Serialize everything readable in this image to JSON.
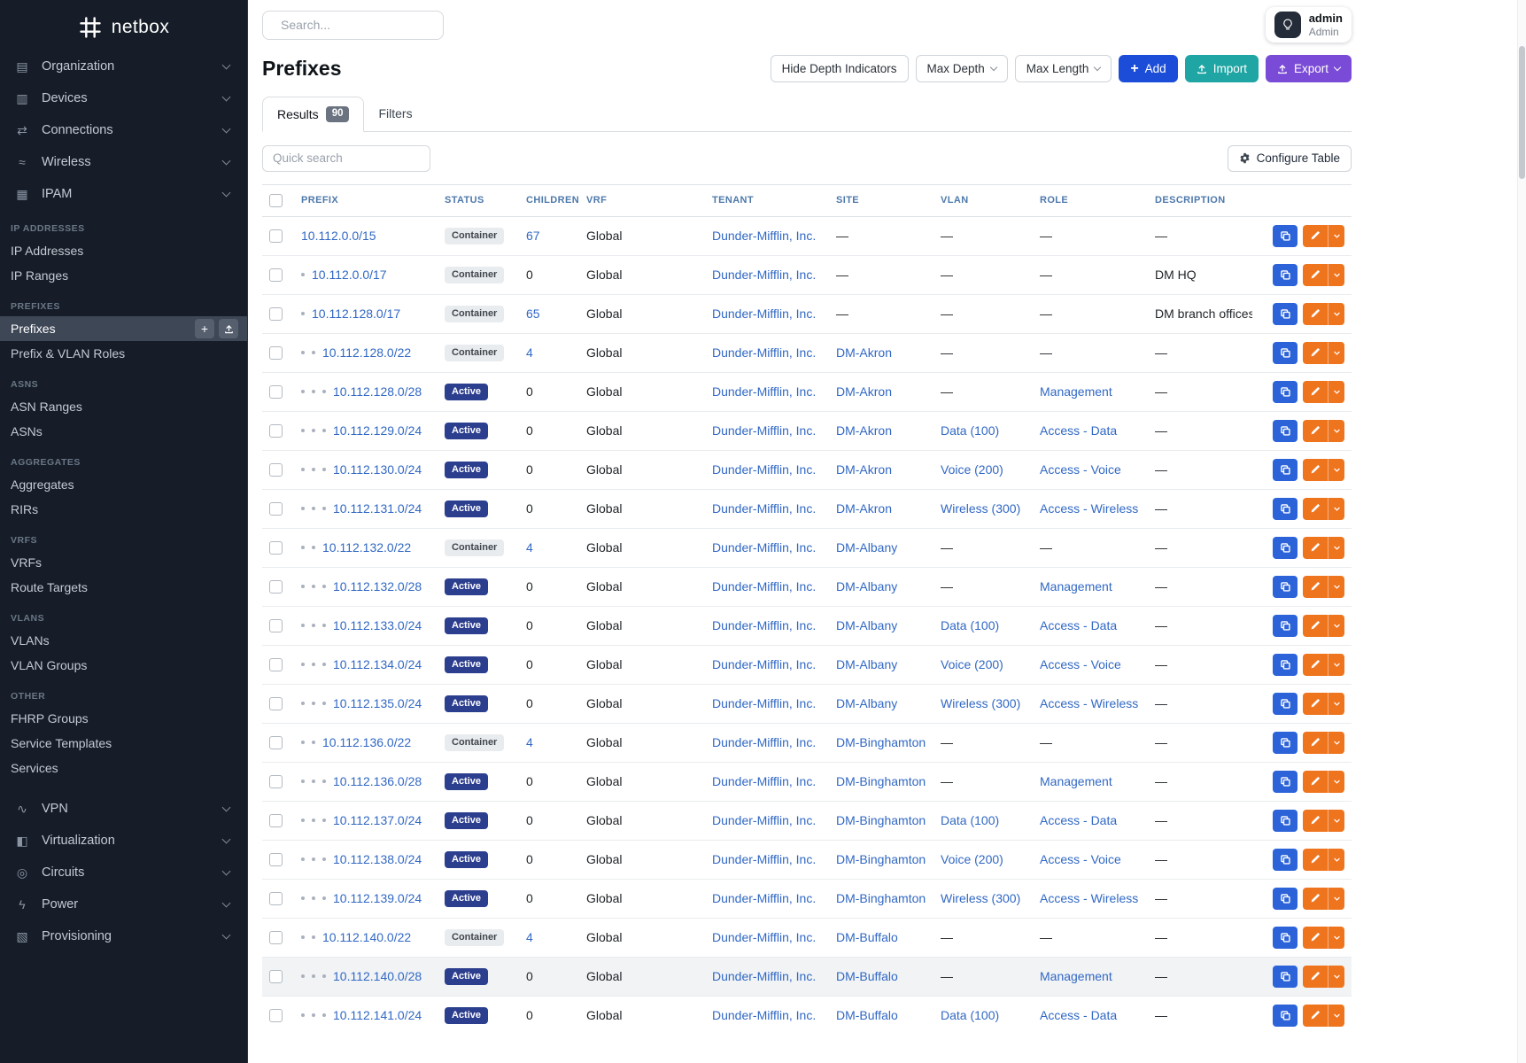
{
  "colors": {
    "sidebar_bg": "#161d28",
    "link": "#3168c4",
    "add_button": "#1b4dd8",
    "import_button": "#1fa5a3",
    "export_button": "#7a4bd6",
    "edit_button": "#ef741e",
    "copy_button": "#2c63d9",
    "badge_active": "#2c3e8e",
    "badge_container": "#e9ecef"
  },
  "icons": {
    "logo": "netbox-hash-icon",
    "search": "magnifier-icon",
    "user_toggle": "lightbulb-icon",
    "add": "plus-icon",
    "import": "upload-icon",
    "export": "upload-icon",
    "configure": "gear-icon",
    "copy": "copy-icon",
    "edit": "pencil-icon",
    "dropdown": "chevron-down-icon"
  },
  "sidebar": {
    "logo_text": "netbox",
    "top_menus": [
      {
        "label": "Organization",
        "glyph": "▤"
      },
      {
        "label": "Devices",
        "glyph": "▥"
      },
      {
        "label": "Connections",
        "glyph": "⇄"
      },
      {
        "label": "Wireless",
        "glyph": "≈"
      },
      {
        "label": "IPAM",
        "glyph": "▦"
      }
    ],
    "sections": [
      {
        "header": "IP Addresses",
        "items": [
          {
            "label": "IP Addresses"
          },
          {
            "label": "IP Ranges"
          }
        ]
      },
      {
        "header": "Prefixes",
        "items": [
          {
            "label": "Prefixes",
            "active": true
          },
          {
            "label": "Prefix & VLAN Roles"
          }
        ]
      },
      {
        "header": "ASNs",
        "items": [
          {
            "label": "ASN Ranges"
          },
          {
            "label": "ASNs"
          }
        ]
      },
      {
        "header": "Aggregates",
        "items": [
          {
            "label": "Aggregates"
          },
          {
            "label": "RIRs"
          }
        ]
      },
      {
        "header": "VRFs",
        "items": [
          {
            "label": "VRFs"
          },
          {
            "label": "Route Targets"
          }
        ]
      },
      {
        "header": "VLANs",
        "items": [
          {
            "label": "VLANs"
          },
          {
            "label": "VLAN Groups"
          }
        ]
      },
      {
        "header": "Other",
        "items": [
          {
            "label": "FHRP Groups"
          },
          {
            "label": "Service Templates"
          },
          {
            "label": "Services"
          }
        ]
      }
    ],
    "bottom_menus": [
      {
        "label": "VPN",
        "glyph": "∿"
      },
      {
        "label": "Virtualization",
        "glyph": "◧"
      },
      {
        "label": "Circuits",
        "glyph": "◎"
      },
      {
        "label": "Power",
        "glyph": "ϟ"
      },
      {
        "label": "Provisioning",
        "glyph": "▧"
      }
    ]
  },
  "topbar": {
    "search_placeholder": "Search...",
    "user_name": "admin",
    "user_role": "Admin"
  },
  "page": {
    "title": "Prefixes",
    "toolbar": {
      "hide_depth": "Hide Depth Indicators",
      "max_depth": "Max Depth",
      "max_length": "Max Length",
      "add": "Add",
      "import": "Import",
      "export": "Export"
    },
    "tabs": [
      {
        "label": "Results",
        "badge": "90"
      },
      {
        "label": "Filters"
      }
    ],
    "quick_search_placeholder": "Quick search",
    "configure_table": "Configure Table"
  },
  "table": {
    "columns": [
      "Prefix",
      "Status",
      "Children",
      "VRF",
      "Tenant",
      "Site",
      "VLAN",
      "Role",
      "Description"
    ],
    "rows": [
      {
        "depth": 0,
        "prefix": "10.112.0.0/15",
        "status": "Container",
        "children": "67",
        "vrf": "Global",
        "tenant": "Dunder-Mifflin, Inc.",
        "site": "—",
        "vlan": "—",
        "role": "—",
        "description": "—",
        "highlighted": false
      },
      {
        "depth": 1,
        "prefix": "10.112.0.0/17",
        "status": "Container",
        "children": "0",
        "vrf": "Global",
        "tenant": "Dunder-Mifflin, Inc.",
        "site": "—",
        "vlan": "—",
        "role": "—",
        "description": "DM HQ",
        "highlighted": false
      },
      {
        "depth": 1,
        "prefix": "10.112.128.0/17",
        "status": "Container",
        "children": "65",
        "vrf": "Global",
        "tenant": "Dunder-Mifflin, Inc.",
        "site": "—",
        "vlan": "—",
        "role": "—",
        "description": "DM branch offices",
        "highlighted": false
      },
      {
        "depth": 2,
        "prefix": "10.112.128.0/22",
        "status": "Container",
        "children": "4",
        "vrf": "Global",
        "tenant": "Dunder-Mifflin, Inc.",
        "site": "DM-Akron",
        "vlan": "—",
        "role": "—",
        "description": "—",
        "highlighted": false
      },
      {
        "depth": 3,
        "prefix": "10.112.128.0/28",
        "status": "Active",
        "children": "0",
        "vrf": "Global",
        "tenant": "Dunder-Mifflin, Inc.",
        "site": "DM-Akron",
        "vlan": "—",
        "role": "Management",
        "description": "—",
        "highlighted": false
      },
      {
        "depth": 3,
        "prefix": "10.112.129.0/24",
        "status": "Active",
        "children": "0",
        "vrf": "Global",
        "tenant": "Dunder-Mifflin, Inc.",
        "site": "DM-Akron",
        "vlan": "Data (100)",
        "role": "Access - Data",
        "description": "—",
        "highlighted": false
      },
      {
        "depth": 3,
        "prefix": "10.112.130.0/24",
        "status": "Active",
        "children": "0",
        "vrf": "Global",
        "tenant": "Dunder-Mifflin, Inc.",
        "site": "DM-Akron",
        "vlan": "Voice (200)",
        "role": "Access - Voice",
        "description": "—",
        "highlighted": false
      },
      {
        "depth": 3,
        "prefix": "10.112.131.0/24",
        "status": "Active",
        "children": "0",
        "vrf": "Global",
        "tenant": "Dunder-Mifflin, Inc.",
        "site": "DM-Akron",
        "vlan": "Wireless (300)",
        "role": "Access - Wireless",
        "description": "—",
        "highlighted": false
      },
      {
        "depth": 2,
        "prefix": "10.112.132.0/22",
        "status": "Container",
        "children": "4",
        "vrf": "Global",
        "tenant": "Dunder-Mifflin, Inc.",
        "site": "DM-Albany",
        "vlan": "—",
        "role": "—",
        "description": "—",
        "highlighted": false
      },
      {
        "depth": 3,
        "prefix": "10.112.132.0/28",
        "status": "Active",
        "children": "0",
        "vrf": "Global",
        "tenant": "Dunder-Mifflin, Inc.",
        "site": "DM-Albany",
        "vlan": "—",
        "role": "Management",
        "description": "—",
        "highlighted": false
      },
      {
        "depth": 3,
        "prefix": "10.112.133.0/24",
        "status": "Active",
        "children": "0",
        "vrf": "Global",
        "tenant": "Dunder-Mifflin, Inc.",
        "site": "DM-Albany",
        "vlan": "Data (100)",
        "role": "Access - Data",
        "description": "—",
        "highlighted": false
      },
      {
        "depth": 3,
        "prefix": "10.112.134.0/24",
        "status": "Active",
        "children": "0",
        "vrf": "Global",
        "tenant": "Dunder-Mifflin, Inc.",
        "site": "DM-Albany",
        "vlan": "Voice (200)",
        "role": "Access - Voice",
        "description": "—",
        "highlighted": false
      },
      {
        "depth": 3,
        "prefix": "10.112.135.0/24",
        "status": "Active",
        "children": "0",
        "vrf": "Global",
        "tenant": "Dunder-Mifflin, Inc.",
        "site": "DM-Albany",
        "vlan": "Wireless (300)",
        "role": "Access - Wireless",
        "description": "—",
        "highlighted": false
      },
      {
        "depth": 2,
        "prefix": "10.112.136.0/22",
        "status": "Container",
        "children": "4",
        "vrf": "Global",
        "tenant": "Dunder-Mifflin, Inc.",
        "site": "DM-Binghamton",
        "vlan": "—",
        "role": "—",
        "description": "—",
        "highlighted": false
      },
      {
        "depth": 3,
        "prefix": "10.112.136.0/28",
        "status": "Active",
        "children": "0",
        "vrf": "Global",
        "tenant": "Dunder-Mifflin, Inc.",
        "site": "DM-Binghamton",
        "vlan": "—",
        "role": "Management",
        "description": "—",
        "highlighted": false
      },
      {
        "depth": 3,
        "prefix": "10.112.137.0/24",
        "status": "Active",
        "children": "0",
        "vrf": "Global",
        "tenant": "Dunder-Mifflin, Inc.",
        "site": "DM-Binghamton",
        "vlan": "Data (100)",
        "role": "Access - Data",
        "description": "—",
        "highlighted": false
      },
      {
        "depth": 3,
        "prefix": "10.112.138.0/24",
        "status": "Active",
        "children": "0",
        "vrf": "Global",
        "tenant": "Dunder-Mifflin, Inc.",
        "site": "DM-Binghamton",
        "vlan": "Voice (200)",
        "role": "Access - Voice",
        "description": "—",
        "highlighted": false
      },
      {
        "depth": 3,
        "prefix": "10.112.139.0/24",
        "status": "Active",
        "children": "0",
        "vrf": "Global",
        "tenant": "Dunder-Mifflin, Inc.",
        "site": "DM-Binghamton",
        "vlan": "Wireless (300)",
        "role": "Access - Wireless",
        "description": "—",
        "highlighted": false
      },
      {
        "depth": 2,
        "prefix": "10.112.140.0/22",
        "status": "Container",
        "children": "4",
        "vrf": "Global",
        "tenant": "Dunder-Mifflin, Inc.",
        "site": "DM-Buffalo",
        "vlan": "—",
        "role": "—",
        "description": "—",
        "highlighted": false
      },
      {
        "depth": 3,
        "prefix": "10.112.140.0/28",
        "status": "Active",
        "children": "0",
        "vrf": "Global",
        "tenant": "Dunder-Mifflin, Inc.",
        "site": "DM-Buffalo",
        "vlan": "—",
        "role": "Management",
        "description": "—",
        "highlighted": true
      },
      {
        "depth": 3,
        "prefix": "10.112.141.0/24",
        "status": "Active",
        "children": "0",
        "vrf": "Global",
        "tenant": "Dunder-Mifflin, Inc.",
        "site": "DM-Buffalo",
        "vlan": "Data (100)",
        "role": "Access - Data",
        "description": "—",
        "highlighted": false
      }
    ]
  }
}
